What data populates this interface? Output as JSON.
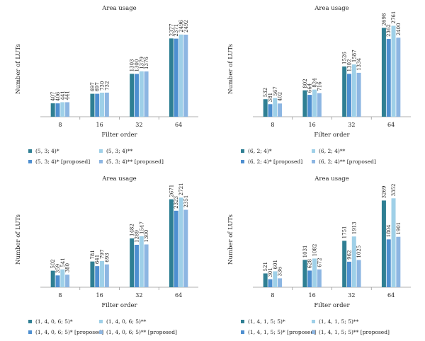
{
  "colors": [
    "#2f7f93",
    "#4e8fd0",
    "#9fd0e8",
    "#8db6e2"
  ],
  "chart_data": [
    {
      "type": "bar",
      "title": "Area usage",
      "xlabel": "Filter order",
      "ylabel": "Number of LUTs",
      "categories": [
        "8",
        "16",
        "32",
        "64"
      ],
      "ylim": [
        0,
        2900
      ],
      "legend_position": "bottom",
      "series": [
        {
          "name": "(5, 3; 4)*",
          "values": [
            407,
            697,
            1303,
            2377
          ]
        },
        {
          "name": "(5, 3; 4)* [proposed]",
          "values": [
            406,
            697,
            1300,
            2371
          ]
        },
        {
          "name": "(5, 3; 4)**",
          "values": [
            441,
            730,
            1379,
            2496
          ]
        },
        {
          "name": "(5, 3; 4)** [proposed]",
          "values": [
            441,
            732,
            1376,
            2492
          ]
        }
      ]
    },
    {
      "type": "bar",
      "title": "Area usage",
      "xlabel": "Filter order",
      "ylabel": "Number of LUTs",
      "categories": [
        "8",
        "16",
        "32",
        "64"
      ],
      "ylim": [
        0,
        2900
      ],
      "legend_position": "bottom",
      "series": [
        {
          "name": "(6, 2; 4)*",
          "values": [
            532,
            802,
            1526,
            2698
          ]
        },
        {
          "name": "(6, 2; 4)* [proposed]",
          "values": [
            381,
            664,
            1302,
            2362
          ]
        },
        {
          "name": "(6, 2; 4)**",
          "values": [
            567,
            824,
            1587,
            2761
          ]
        },
        {
          "name": "(6, 2; 4)** [proposed]",
          "values": [
            402,
            716,
            1334,
            2400
          ]
        }
      ]
    },
    {
      "type": "bar",
      "title": "Area usage",
      "xlabel": "Filter order",
      "ylabel": "Number of LUTs",
      "categories": [
        "8",
        "16",
        "32",
        "64"
      ],
      "ylim": [
        0,
        2900
      ],
      "legend_position": "bottom",
      "series": [
        {
          "name": "(1, 4, 0, 6; 5)*",
          "values": [
            502,
            781,
            1482,
            2671
          ]
        },
        {
          "name": "(1, 4, 0, 6; 5)* [proposed]",
          "values": [
            359,
            641,
            1289,
            2323
          ]
        },
        {
          "name": "(1, 4, 0, 6; 5)**",
          "values": [
            541,
            797,
            1547,
            2721
          ]
        },
        {
          "name": "(1, 4, 0, 6; 5)** [proposed]",
          "values": [
            380,
            693,
            1300,
            2351
          ]
        }
      ]
    },
    {
      "type": "bar",
      "title": "Area usage",
      "xlabel": "Filter order",
      "ylabel": "Number of LUTs",
      "categories": [
        "8",
        "16",
        "32",
        "64"
      ],
      "ylim": [
        0,
        3600
      ],
      "legend_position": "bottom",
      "series": [
        {
          "name": "(1, 4, 1, 5; 5)*",
          "values": [
            521,
            1031,
            1751,
            3269
          ]
        },
        {
          "name": "(1, 4, 1, 5; 5)* [proposed]",
          "values": [
            301,
            628,
            962,
            1804
          ]
        },
        {
          "name": "(1, 4, 1, 5; 5)**",
          "values": [
            601,
            1082,
            1913,
            3352
          ]
        },
        {
          "name": "(1, 4, 1, 5; 5)** [proposed]",
          "values": [
            336,
            672,
            1025,
            1901
          ]
        }
      ]
    }
  ]
}
